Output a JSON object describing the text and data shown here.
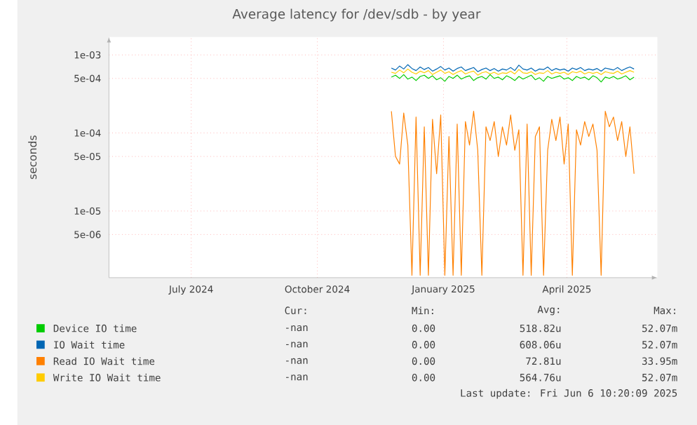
{
  "chart_data": {
    "type": "line",
    "title": "Average latency for /dev/sdb - by year",
    "ylabel": "seconds",
    "log": "y",
    "grid": true,
    "legend": "bottom",
    "marker": "none",
    "xlim": [
      "2024-05-17",
      "2025-06-21"
    ],
    "xticks": [
      {
        "value": "2024-07-16",
        "label": "July 2024"
      },
      {
        "value": "2024-10-16",
        "label": "October 2024"
      },
      {
        "value": "2025-01-16",
        "label": "January 2025"
      },
      {
        "value": "2025-04-16",
        "label": "April 2025"
      }
    ],
    "ylim": [
      1.4e-06,
      0.0017
    ],
    "yticks": [
      {
        "value": 1e-05,
        "label": "1e-05"
      },
      {
        "value": 5e-06,
        "label": "5e-06"
      },
      {
        "value": 0.0001,
        "label": "1e-04"
      },
      {
        "value": 5e-05,
        "label": "5e-05"
      },
      {
        "value": 0.001,
        "label": "1e-03"
      },
      {
        "value": 0.0005,
        "label": "5e-04"
      }
    ],
    "x": [
      "2024-12-09",
      "2024-12-12",
      "2024-12-15",
      "2024-12-18",
      "2024-12-21",
      "2024-12-24",
      "2024-12-27",
      "2024-12-30",
      "2025-01-02",
      "2025-01-05",
      "2025-01-08",
      "2025-01-11",
      "2025-01-14",
      "2025-01-17",
      "2025-01-20",
      "2025-01-23",
      "2025-01-26",
      "2025-01-29",
      "2025-02-01",
      "2025-02-04",
      "2025-02-07",
      "2025-02-10",
      "2025-02-13",
      "2025-02-16",
      "2025-02-19",
      "2025-02-22",
      "2025-02-25",
      "2025-02-28",
      "2025-03-03",
      "2025-03-06",
      "2025-03-09",
      "2025-03-12",
      "2025-03-15",
      "2025-03-18",
      "2025-03-21",
      "2025-03-24",
      "2025-03-27",
      "2025-03-30",
      "2025-04-02",
      "2025-04-05",
      "2025-04-08",
      "2025-04-11",
      "2025-04-14",
      "2025-04-17",
      "2025-04-20",
      "2025-04-23",
      "2025-04-26",
      "2025-04-29",
      "2025-05-02",
      "2025-05-05",
      "2025-05-08",
      "2025-05-11",
      "2025-05-14",
      "2025-05-17",
      "2025-05-20",
      "2025-05-23",
      "2025-05-26",
      "2025-05-29",
      "2025-06-01",
      "2025-06-04"
    ],
    "series": [
      {
        "name": "Device IO time",
        "color": "#00cc00",
        "values": [
          0.00052,
          0.00055,
          0.0005,
          0.00056,
          0.00049,
          0.00052,
          0.00047,
          0.00053,
          0.00055,
          0.0005,
          0.00054,
          0.00048,
          0.00051,
          0.00046,
          0.00053,
          0.0005,
          0.00055,
          0.00049,
          0.00052,
          0.00054,
          0.00047,
          0.00051,
          0.00053,
          0.00049,
          0.00056,
          0.0005,
          0.00052,
          0.00048,
          0.00054,
          0.00051,
          0.00047,
          0.00053,
          0.00049,
          0.00052,
          0.00055,
          0.00048,
          0.00051,
          0.00046,
          0.00053,
          0.0005,
          0.00052,
          0.00054,
          0.00049,
          0.00051,
          0.00047,
          0.00053,
          0.0005,
          0.00052,
          0.00048,
          0.00054,
          0.00051,
          0.00045,
          0.00052,
          0.0005,
          0.00053,
          0.00049,
          0.00051,
          0.00054,
          0.00048,
          0.00052
        ]
      },
      {
        "name": "IO Wait time",
        "color": "#0066b3",
        "values": [
          0.00068,
          0.00064,
          0.00072,
          0.00066,
          0.00075,
          0.00067,
          0.00063,
          0.0007,
          0.00065,
          0.00069,
          0.00062,
          0.00066,
          0.00071,
          0.00064,
          0.00068,
          0.00062,
          0.00067,
          0.0007,
          0.00063,
          0.00066,
          0.00069,
          0.00061,
          0.00065,
          0.00068,
          0.00063,
          0.00067,
          0.00062,
          0.00066,
          0.00064,
          0.00069,
          0.00063,
          0.00074,
          0.00066,
          0.00064,
          0.00068,
          0.00062,
          0.00066,
          0.00065,
          0.0007,
          0.00063,
          0.00067,
          0.00064,
          0.00066,
          0.00062,
          0.00068,
          0.00065,
          0.00069,
          0.00063,
          0.00066,
          0.00064,
          0.00067,
          0.00062,
          0.00068,
          0.00066,
          0.00064,
          0.00069,
          0.00063,
          0.00067,
          0.0007,
          0.00066
        ]
      },
      {
        "name": "Read IO Wait time",
        "color": "#ff8000",
        "values": [
          0.00019,
          5e-05,
          4e-05,
          0.00018,
          7e-05,
          1.5e-06,
          0.00016,
          1.5e-06,
          0.00012,
          1.5e-06,
          0.00015,
          3e-05,
          0.00017,
          1.5e-06,
          9e-05,
          1.5e-06,
          0.00013,
          1.5e-06,
          0.00014,
          7e-05,
          0.00019,
          6e-05,
          1.5e-06,
          0.00012,
          8e-05,
          0.00014,
          5e-05,
          0.00012,
          7e-05,
          0.00017,
          6e-05,
          0.00011,
          1.5e-06,
          0.00013,
          1.5e-06,
          9e-05,
          0.00012,
          1.5e-06,
          6e-05,
          0.00015,
          8e-05,
          0.00016,
          4e-05,
          0.00013,
          1.5e-06,
          0.00011,
          7e-05,
          0.00014,
          9e-05,
          0.00013,
          6e-05,
          1.5e-06,
          0.00019,
          0.00012,
          0.00016,
          8e-05,
          0.00014,
          5e-05,
          0.00012,
          3e-05
        ]
      },
      {
        "name": "Write IO Wait time",
        "color": "#ffcc00",
        "values": [
          0.0006,
          0.00058,
          0.00064,
          0.00059,
          0.00066,
          0.0006,
          0.00057,
          0.00062,
          0.00059,
          0.00063,
          0.00056,
          0.0006,
          0.00064,
          0.00058,
          0.00061,
          0.00056,
          0.0006,
          0.00063,
          0.00057,
          0.0006,
          0.00062,
          0.00055,
          0.00059,
          0.00061,
          0.00057,
          0.0006,
          0.00056,
          0.00059,
          0.00058,
          0.00062,
          0.00057,
          0.00065,
          0.00059,
          0.00058,
          0.00061,
          0.00056,
          0.00059,
          0.00058,
          0.00063,
          0.00057,
          0.0006,
          0.00058,
          0.0006,
          0.00056,
          0.00061,
          0.00059,
          0.00062,
          0.00057,
          0.0006,
          0.00058,
          0.0006,
          0.00056,
          0.00061,
          0.00059,
          0.00058,
          0.00062,
          0.00057,
          0.0006,
          0.00063,
          0.0006
        ]
      }
    ],
    "annotations": [
      "Cur:",
      "Min:",
      "Avg:",
      "Max:",
      "-nan",
      "0.00",
      "518.82u",
      "52.07m",
      "-nan",
      "0.00",
      "608.06u",
      "52.07m",
      "-nan",
      "0.00",
      "72.81u",
      "33.95m",
      "-nan",
      "0.00",
      "564.76u",
      "52.07m",
      "Last update: Fri Jun  6 10:20:09 2025"
    ]
  }
}
